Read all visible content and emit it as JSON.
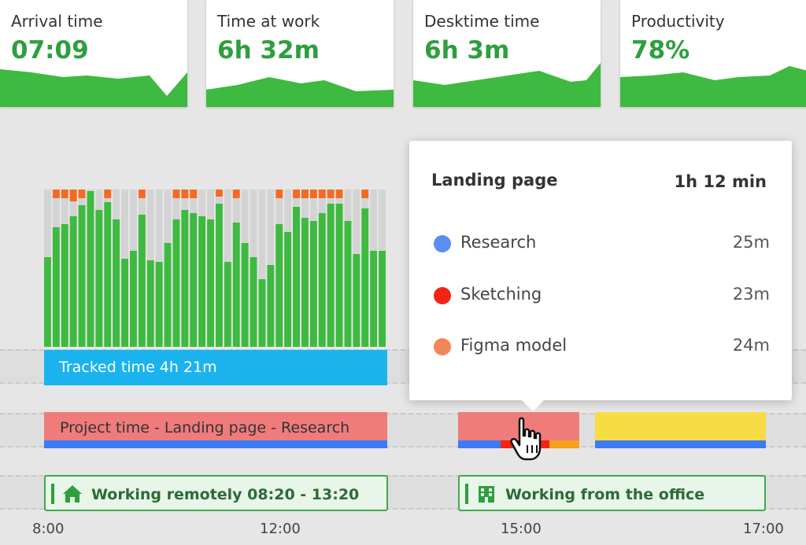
{
  "stats": [
    {
      "label": "Arrival time",
      "value": "07:09"
    },
    {
      "label": "Time at work",
      "value": "6h 32m"
    },
    {
      "label": "Desktime time",
      "value": "6h 3m"
    },
    {
      "label": "Productivity",
      "value": "78%"
    }
  ],
  "activity": {
    "colors": {
      "productive": "#3dba3f",
      "neutral": "#d3d3d3",
      "unproductive": "#f46a23"
    },
    "bars": [
      {
        "productive": 0.57,
        "unproductive": 0.0
      },
      {
        "productive": 0.76,
        "unproductive": 0.04
      },
      {
        "productive": 0.78,
        "unproductive": 0.04
      },
      {
        "productive": 0.83,
        "unproductive": 0.06
      },
      {
        "productive": 0.9,
        "unproductive": 0.04
      },
      {
        "productive": 0.99,
        "unproductive": 0.0
      },
      {
        "productive": 0.87,
        "unproductive": 0.0
      },
      {
        "productive": 0.92,
        "unproductive": 0.04
      },
      {
        "productive": 0.81,
        "unproductive": 0.0
      },
      {
        "productive": 0.56,
        "unproductive": 0.0
      },
      {
        "productive": 0.61,
        "unproductive": 0.0
      },
      {
        "productive": 0.84,
        "unproductive": 0.04
      },
      {
        "productive": 0.55,
        "unproductive": 0.0
      },
      {
        "productive": 0.54,
        "unproductive": 0.0
      },
      {
        "productive": 0.66,
        "unproductive": 0.0
      },
      {
        "productive": 0.81,
        "unproductive": 0.04
      },
      {
        "productive": 0.87,
        "unproductive": 0.04
      },
      {
        "productive": 0.85,
        "unproductive": 0.04
      },
      {
        "productive": 0.83,
        "unproductive": 0.0
      },
      {
        "productive": 0.81,
        "unproductive": 0.0
      },
      {
        "productive": 0.91,
        "unproductive": 0.03
      },
      {
        "productive": 0.54,
        "unproductive": 0.0
      },
      {
        "productive": 0.79,
        "unproductive": 0.04
      },
      {
        "productive": 0.66,
        "unproductive": 0.0
      },
      {
        "productive": 0.57,
        "unproductive": 0.0
      },
      {
        "productive": 0.43,
        "unproductive": 0.0
      },
      {
        "productive": 0.52,
        "unproductive": 0.0
      },
      {
        "productive": 0.78,
        "unproductive": 0.04
      },
      {
        "productive": 0.73,
        "unproductive": 0.0
      },
      {
        "productive": 0.89,
        "unproductive": 0.04
      },
      {
        "productive": 0.82,
        "unproductive": 0.04
      },
      {
        "productive": 0.8,
        "unproductive": 0.04
      },
      {
        "productive": 0.85,
        "unproductive": 0.04
      },
      {
        "productive": 0.91,
        "unproductive": 0.04
      },
      {
        "productive": 0.91,
        "unproductive": 0.04
      },
      {
        "productive": 0.8,
        "unproductive": 0.0
      },
      {
        "productive": 0.59,
        "unproductive": 0.0
      },
      {
        "productive": 0.88,
        "unproductive": 0.04
      },
      {
        "productive": 0.61,
        "unproductive": 0.0
      },
      {
        "productive": 0.61,
        "unproductive": 0.0
      }
    ]
  },
  "tracked": {
    "label": "Tracked time 4h 21m"
  },
  "project": {
    "label": "Project time - Landing page - Research"
  },
  "locations": {
    "remote": "Working remotely 08:20 - 13:20",
    "office": "Working from the office"
  },
  "timeline": {
    "labels": [
      "8:00",
      "12:00",
      "15:00",
      "17:00"
    ]
  },
  "tooltip": {
    "title": "Landing page",
    "total": "1h 12 min",
    "items": [
      {
        "name": "Research",
        "duration": "25m",
        "color": "#5a8ef2"
      },
      {
        "name": "Sketching",
        "duration": "23m",
        "color": "#f42413"
      },
      {
        "name": "Figma model",
        "duration": "24m",
        "color": "#f4865b"
      }
    ]
  }
}
